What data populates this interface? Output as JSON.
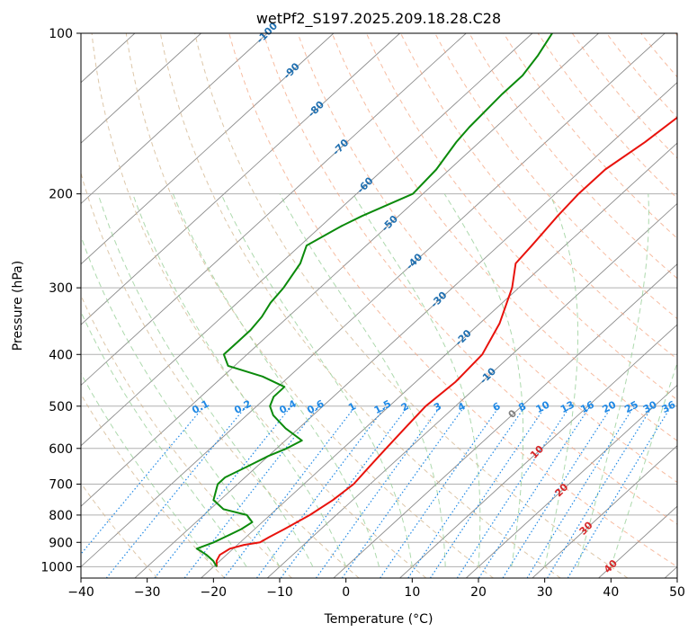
{
  "chart_data": {
    "type": "line",
    "subtype": "skew-t log-p",
    "title": "wetPf2_S197.2025.209.18.28.C28",
    "xlabel": "Temperature (°C)",
    "ylabel": "Pressure (hPa)",
    "xlim": [
      -40,
      50
    ],
    "ylim": [
      1050,
      100
    ],
    "y_scale": "log",
    "grid": true,
    "x_ticks": [
      "−40",
      "−30",
      "−20",
      "−10",
      "0",
      "10",
      "20",
      "30",
      "40",
      "50"
    ],
    "y_ticks": [
      "100",
      "200",
      "300",
      "400",
      "500",
      "600",
      "700",
      "800",
      "900",
      "1000"
    ],
    "isotherm_labels": [
      "-100",
      "-90",
      "-80",
      "-70",
      "-60",
      "-50",
      "-40",
      "-30",
      "-20",
      "-10",
      "0",
      "10",
      "20",
      "30",
      "40"
    ],
    "isotherm_label_values": [
      -100,
      -90,
      -80,
      -70,
      -60,
      -50,
      -40,
      -30,
      -20,
      -10,
      0,
      10,
      20,
      30,
      40
    ],
    "mixing_ratio_labels": [
      "0.1",
      "0.2",
      "0.4",
      "0.6",
      "1",
      "1.5",
      "2",
      "3",
      "4",
      "6",
      "8",
      "10",
      "13",
      "16",
      "20",
      "25",
      "30",
      "36"
    ],
    "mixing_ratio_values": [
      0.1,
      0.2,
      0.4,
      0.6,
      1,
      1.5,
      2,
      3,
      4,
      6,
      8,
      10,
      13,
      16,
      20,
      25,
      30,
      36
    ],
    "colors": {
      "temperature": "#e8120c",
      "dewpoint": "#0b8a0b",
      "isotherm": "#8c8c8c",
      "isotherm_label_cold": "#1f6fb0",
      "isotherm_label_zero": "#808080",
      "isotherm_label_warm": "#d62728",
      "dry_adiabat": "#d2b48c",
      "dry_adiabat_warm": "#f4a582",
      "moist_adiabat": "#98d098",
      "mixing_ratio": "#1e88e5"
    },
    "series": [
      {
        "role": "temperature",
        "points": [
          {
            "p": 1000,
            "t": -19.5
          },
          {
            "p": 975,
            "t": -20.5
          },
          {
            "p": 950,
            "t": -21.0
          },
          {
            "p": 925,
            "t": -20.5
          },
          {
            "p": 910,
            "t": -19.0
          },
          {
            "p": 900,
            "t": -17.0
          },
          {
            "p": 880,
            "t": -16.5
          },
          {
            "p": 850,
            "t": -15.5
          },
          {
            "p": 800,
            "t": -14.0
          },
          {
            "p": 750,
            "t": -13.0
          },
          {
            "p": 700,
            "t": -12.5
          },
          {
            "p": 650,
            "t": -13.0
          },
          {
            "p": 600,
            "t": -13.5
          },
          {
            "p": 550,
            "t": -14.0
          },
          {
            "p": 500,
            "t": -14.5
          },
          {
            "p": 450,
            "t": -14.0
          },
          {
            "p": 400,
            "t": -14.5
          },
          {
            "p": 350,
            "t": -17.0
          },
          {
            "p": 300,
            "t": -21.0
          },
          {
            "p": 270,
            "t": -24.5
          },
          {
            "p": 250,
            "t": -25.0
          },
          {
            "p": 220,
            "t": -26.0
          },
          {
            "p": 200,
            "t": -26.5
          },
          {
            "p": 180,
            "t": -26.5
          },
          {
            "p": 160,
            "t": -25.0
          },
          {
            "p": 140,
            "t": -24.0
          },
          {
            "p": 130,
            "t": -24.5
          },
          {
            "p": 120,
            "t": -25.0
          },
          {
            "p": 110,
            "t": -24.5
          },
          {
            "p": 100,
            "t": -24.5
          }
        ]
      },
      {
        "role": "dewpoint",
        "points": [
          {
            "p": 1000,
            "t": -19.5
          },
          {
            "p": 975,
            "t": -21.0
          },
          {
            "p": 950,
            "t": -23.0
          },
          {
            "p": 925,
            "t": -25.5
          },
          {
            "p": 900,
            "t": -24.0
          },
          {
            "p": 875,
            "t": -23.0
          },
          {
            "p": 850,
            "t": -22.0
          },
          {
            "p": 825,
            "t": -21.5
          },
          {
            "p": 800,
            "t": -23.5
          },
          {
            "p": 780,
            "t": -28.0
          },
          {
            "p": 750,
            "t": -31.0
          },
          {
            "p": 700,
            "t": -33.0
          },
          {
            "p": 680,
            "t": -33.0
          },
          {
            "p": 650,
            "t": -31.5
          },
          {
            "p": 620,
            "t": -30.0
          },
          {
            "p": 600,
            "t": -28.5
          },
          {
            "p": 580,
            "t": -27.5
          },
          {
            "p": 550,
            "t": -32.0
          },
          {
            "p": 520,
            "t": -36.0
          },
          {
            "p": 500,
            "t": -38.0
          },
          {
            "p": 480,
            "t": -39.0
          },
          {
            "p": 460,
            "t": -39.0
          },
          {
            "p": 440,
            "t": -44.0
          },
          {
            "p": 420,
            "t": -51.0
          },
          {
            "p": 400,
            "t": -53.5
          },
          {
            "p": 380,
            "t": -53.5
          },
          {
            "p": 360,
            "t": -53.5
          },
          {
            "p": 340,
            "t": -54.0
          },
          {
            "p": 320,
            "t": -55.0
          },
          {
            "p": 300,
            "t": -55.5
          },
          {
            "p": 270,
            "t": -57.0
          },
          {
            "p": 250,
            "t": -59.0
          },
          {
            "p": 230,
            "t": -57.0
          },
          {
            "p": 220,
            "t": -55.5
          },
          {
            "p": 200,
            "t": -51.5
          },
          {
            "p": 180,
            "t": -52.0
          },
          {
            "p": 160,
            "t": -53.5
          },
          {
            "p": 150,
            "t": -54.0
          },
          {
            "p": 130,
            "t": -54.5
          },
          {
            "p": 120,
            "t": -54.5
          },
          {
            "p": 110,
            "t": -55.5
          },
          {
            "p": 100,
            "t": -57.0
          }
        ]
      }
    ]
  }
}
